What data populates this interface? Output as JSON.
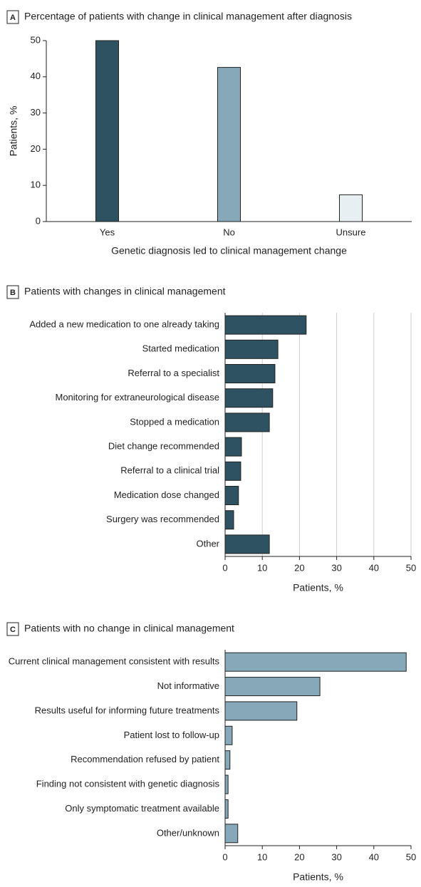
{
  "chart_data": [
    {
      "type": "bar",
      "panel": "A",
      "title": "Percentage of patients with change in clinical management after diagnosis",
      "x_label": "Genetic diagnosis led to clinical management change",
      "y_label": "Patients, %",
      "categories": [
        "Yes",
        "No",
        "Unsure"
      ],
      "values": [
        50,
        42.6,
        7.4
      ],
      "colors": [
        "#2e5261",
        "#86a8b8",
        "#e8eff3"
      ],
      "ylim": [
        0,
        50
      ],
      "yticks": [
        0,
        10,
        20,
        30,
        40,
        50
      ],
      "grid": false
    },
    {
      "type": "barh",
      "panel": "B",
      "title": "Patients with changes in clinical management",
      "x_label": "Patients, %",
      "categories": [
        "Added a new medication to one already taking",
        "Started medication",
        "Referral to a specialist",
        "Monitoring for extraneurological disease",
        "Stopped a medication",
        "Diet change recommended",
        "Referral to a clinical trial",
        "Medication dose changed",
        "Surgery was recommended",
        "Other"
      ],
      "values": [
        21.8,
        14.2,
        13.4,
        12.8,
        11.9,
        4.4,
        4.2,
        3.6,
        2.3,
        11.9
      ],
      "color": "#2e5261",
      "xlim": [
        0,
        50
      ],
      "xticks": [
        0,
        10,
        20,
        30,
        40,
        50
      ],
      "grid": true
    },
    {
      "type": "barh",
      "panel": "C",
      "title": "Patients with no change in clinical management",
      "x_label": "Patients, %",
      "categories": [
        "Current clinical management consistent with results",
        "Not informative",
        "Results useful for informing future treatments",
        "Patient lost to follow-up",
        "Recommendation refused by patient",
        "Finding not consistent with genetic diagnosis",
        "Only symptomatic treatment available",
        "Other/unknown"
      ],
      "values": [
        48.7,
        25.5,
        19.3,
        1.9,
        1.3,
        0.8,
        0.8,
        3.4
      ],
      "color": "#86a8b8",
      "xlim": [
        0,
        50
      ],
      "xticks": [
        0,
        10,
        20,
        30,
        40,
        50
      ],
      "grid": false
    }
  ]
}
